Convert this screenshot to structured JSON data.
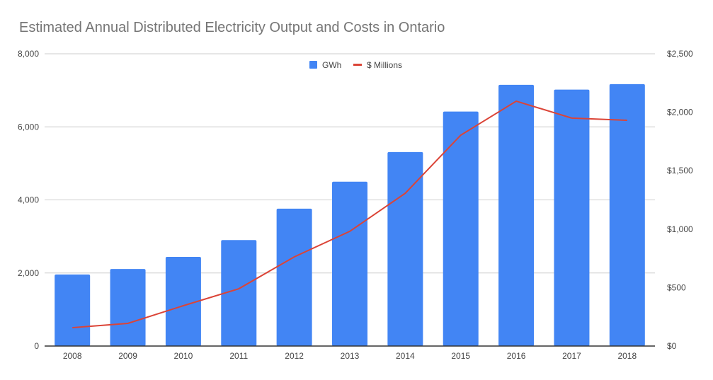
{
  "chart_data": {
    "type": "bar",
    "title": "Estimated Annual Distributed Electricity Output and Costs in Ontario",
    "categories": [
      "2008",
      "2009",
      "2010",
      "2011",
      "2012",
      "2013",
      "2014",
      "2015",
      "2016",
      "2017",
      "2018"
    ],
    "series": [
      {
        "name": "GWh",
        "type": "bar",
        "axis": "left",
        "color": "#4285f4",
        "values": [
          1960,
          2110,
          2440,
          2900,
          3760,
          4500,
          5310,
          6420,
          7150,
          7020,
          7170
        ]
      },
      {
        "name": "$ Millions",
        "type": "line",
        "axis": "right",
        "color": "#db4437",
        "values": [
          157,
          194,
          345,
          490,
          763,
          981,
          1307,
          1804,
          2095,
          1950,
          1931
        ]
      }
    ],
    "left_axis": {
      "ylim": [
        0,
        8000
      ],
      "ticks": [
        0,
        2000,
        4000,
        6000,
        8000
      ],
      "tick_labels": [
        "0",
        "2,000",
        "4,000",
        "6,000",
        "8,000"
      ]
    },
    "right_axis": {
      "ylim": [
        0,
        2500
      ],
      "ticks": [
        0,
        500,
        1000,
        1500,
        2000,
        2500
      ],
      "tick_labels": [
        "$0",
        "$500",
        "$1,000",
        "$1,500",
        "$2,000",
        "$2,500"
      ]
    },
    "legend": {
      "placement": "top-center",
      "labels": [
        "GWh",
        "$ Millions"
      ]
    },
    "grid": true,
    "xlabel": "",
    "ylabel": ""
  }
}
